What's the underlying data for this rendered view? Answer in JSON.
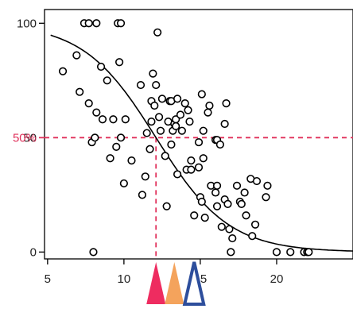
{
  "chart_data": {
    "type": "scatter",
    "title": "",
    "xlabel": "",
    "ylabel": "",
    "xlim": [
      4.8,
      25
    ],
    "ylim": [
      -3,
      106
    ],
    "x_ticks": [
      5,
      10,
      15,
      20
    ],
    "y_ticks": [
      0,
      50,
      100
    ],
    "grid": false,
    "legend": "none",
    "reference": {
      "label": "50%",
      "y": 50,
      "x": 12.1,
      "color": "#e0305a"
    },
    "curve": {
      "type": "logistic",
      "midpoint": 12.1,
      "slope": 0.42,
      "color": "#000000"
    },
    "markers": [
      {
        "name": "marker-red",
        "x": 12.1,
        "color": "#ee2c60",
        "style": "filled"
      },
      {
        "name": "marker-orange",
        "x": 13.3,
        "color": "#f4a35c",
        "style": "filled"
      },
      {
        "name": "marker-blue",
        "x": 14.6,
        "color": "#2d4e9c",
        "style": "outline"
      }
    ],
    "points": [
      [
        6.0,
        79
      ],
      [
        6.9,
        86
      ],
      [
        7.1,
        70
      ],
      [
        7.4,
        100
      ],
      [
        7.7,
        100
      ],
      [
        7.7,
        65
      ],
      [
        7.9,
        48
      ],
      [
        8.0,
        0
      ],
      [
        8.1,
        50
      ],
      [
        8.2,
        100
      ],
      [
        8.2,
        61
      ],
      [
        8.5,
        81
      ],
      [
        8.6,
        58
      ],
      [
        8.9,
        75
      ],
      [
        9.1,
        41
      ],
      [
        9.3,
        58
      ],
      [
        9.5,
        46
      ],
      [
        9.6,
        100
      ],
      [
        9.7,
        83
      ],
      [
        9.8,
        100
      ],
      [
        9.8,
        50
      ],
      [
        10.0,
        30
      ],
      [
        10.1,
        58
      ],
      [
        10.5,
        40
      ],
      [
        11.1,
        73
      ],
      [
        11.2,
        25
      ],
      [
        11.4,
        33
      ],
      [
        11.5,
        52
      ],
      [
        11.7,
        45
      ],
      [
        11.8,
        57
      ],
      [
        11.8,
        66
      ],
      [
        11.9,
        78
      ],
      [
        12.0,
        64
      ],
      [
        12.1,
        73
      ],
      [
        12.2,
        96
      ],
      [
        12.3,
        59
      ],
      [
        12.4,
        53
      ],
      [
        12.5,
        67
      ],
      [
        12.7,
        42
      ],
      [
        12.8,
        20
      ],
      [
        12.9,
        57
      ],
      [
        13.0,
        66
      ],
      [
        13.1,
        66
      ],
      [
        13.1,
        47
      ],
      [
        13.2,
        53
      ],
      [
        13.3,
        56
      ],
      [
        13.4,
        55
      ],
      [
        13.4,
        58
      ],
      [
        13.5,
        67
      ],
      [
        13.5,
        34
      ],
      [
        13.7,
        60
      ],
      [
        13.8,
        53
      ],
      [
        14.0,
        65
      ],
      [
        14.1,
        36
      ],
      [
        14.2,
        62
      ],
      [
        14.3,
        57
      ],
      [
        14.4,
        36
      ],
      [
        14.4,
        40
      ],
      [
        14.6,
        16
      ],
      [
        14.9,
        37
      ],
      [
        14.9,
        48
      ],
      [
        15.0,
        24
      ],
      [
        15.1,
        69
      ],
      [
        15.1,
        22
      ],
      [
        15.2,
        53
      ],
      [
        15.2,
        41
      ],
      [
        15.3,
        15
      ],
      [
        15.5,
        61
      ],
      [
        15.6,
        64
      ],
      [
        15.7,
        29
      ],
      [
        16.0,
        49
      ],
      [
        16.0,
        26
      ],
      [
        16.1,
        49
      ],
      [
        16.1,
        20
      ],
      [
        16.1,
        29
      ],
      [
        16.3,
        47
      ],
      [
        16.4,
        11
      ],
      [
        16.6,
        23
      ],
      [
        16.6,
        56
      ],
      [
        16.7,
        65
      ],
      [
        16.8,
        21
      ],
      [
        16.9,
        10
      ],
      [
        17.0,
        0
      ],
      [
        17.1,
        6
      ],
      [
        17.4,
        29
      ],
      [
        17.6,
        22
      ],
      [
        17.7,
        21
      ],
      [
        17.9,
        26
      ],
      [
        18.0,
        16
      ],
      [
        18.3,
        32
      ],
      [
        18.4,
        7
      ],
      [
        18.6,
        12
      ],
      [
        18.7,
        31
      ],
      [
        19.3,
        24
      ],
      [
        19.4,
        29
      ],
      [
        20.0,
        0
      ],
      [
        20.9,
        0
      ],
      [
        21.8,
        0
      ],
      [
        22.0,
        0
      ],
      [
        22.1,
        0
      ]
    ]
  }
}
